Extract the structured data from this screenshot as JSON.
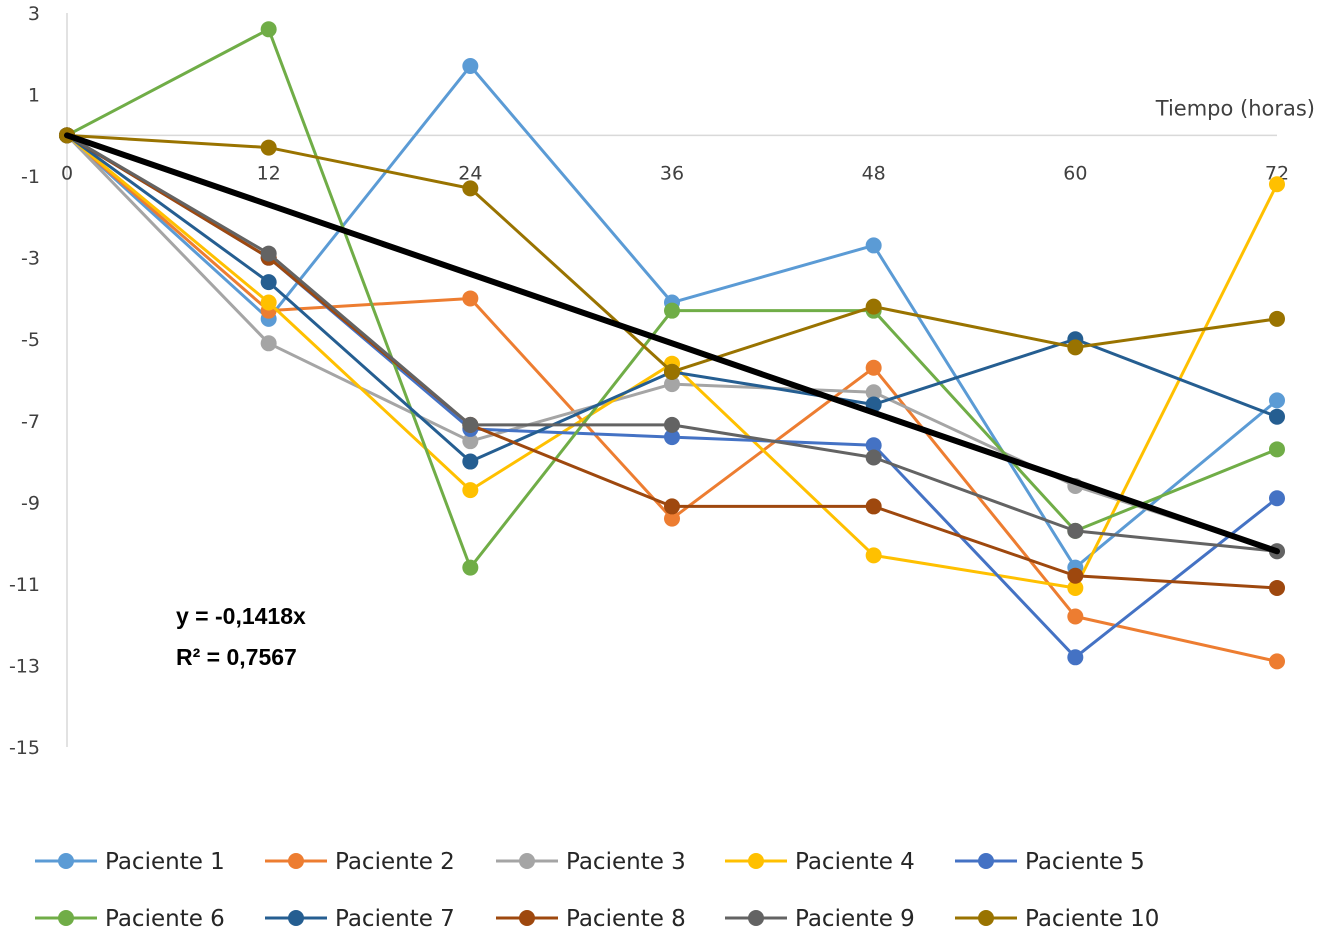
{
  "chart_data": {
    "type": "line",
    "xlabel": "Tiempo (horas)",
    "ylabel": "",
    "x": [
      0,
      12,
      24,
      36,
      48,
      60,
      72
    ],
    "x_tick_labels": [
      "0",
      "12",
      "24",
      "36",
      "48",
      "60",
      "72"
    ],
    "ylim": [
      -15,
      3
    ],
    "y_ticks": [
      3,
      1,
      -1,
      -3,
      -5,
      -7,
      -9,
      -11,
      -13,
      -15
    ],
    "y_tick_labels": [
      "3",
      "1",
      "-1",
      "-3",
      "-5",
      "-7",
      "-9",
      "-11",
      "-13",
      "-15"
    ],
    "grid": false,
    "legend_position": "bottom",
    "series": [
      {
        "name": "Paciente 1",
        "color": "#5B9BD5",
        "values": [
          0,
          -4.5,
          1.7,
          -4.1,
          -2.7,
          -10.6,
          -6.5
        ]
      },
      {
        "name": "Paciente 2",
        "color": "#ED7D31",
        "values": [
          0,
          -4.3,
          -4.0,
          -9.4,
          -5.7,
          -11.8,
          -12.9
        ]
      },
      {
        "name": "Paciente 3",
        "color": "#A5A5A5",
        "values": [
          0,
          -5.1,
          -7.5,
          -6.1,
          -6.3,
          -8.6,
          -10.2
        ]
      },
      {
        "name": "Paciente 4",
        "color": "#FFC000",
        "values": [
          0,
          -4.1,
          -8.7,
          -5.6,
          -10.3,
          -11.1,
          -1.2
        ]
      },
      {
        "name": "Paciente 5",
        "color": "#4472C4",
        "values": [
          0,
          -3.0,
          -7.2,
          -7.4,
          -7.6,
          -12.8,
          -8.9
        ]
      },
      {
        "name": "Paciente 6",
        "color": "#70AD47",
        "values": [
          0,
          2.6,
          -10.6,
          -4.3,
          -4.3,
          -9.7,
          -7.7
        ]
      },
      {
        "name": "Paciente 7",
        "color": "#255E91",
        "values": [
          0,
          -3.6,
          -8.0,
          -5.8,
          -6.6,
          -5.0,
          -6.9
        ]
      },
      {
        "name": "Paciente 8",
        "color": "#9E480E",
        "values": [
          0,
          -3.0,
          -7.1,
          -9.1,
          -9.1,
          -10.8,
          -11.1
        ]
      },
      {
        "name": "Paciente 9",
        "color": "#636363",
        "values": [
          0,
          -2.9,
          -7.1,
          -7.1,
          -7.9,
          -9.7,
          -10.2
        ]
      },
      {
        "name": "Paciente 10",
        "color": "#997300",
        "values": [
          0,
          -0.3,
          -1.3,
          -5.8,
          -4.2,
          -5.2,
          -4.5
        ]
      }
    ],
    "trendline": {
      "color": "#000000",
      "x": [
        0,
        72
      ],
      "values": [
        0,
        -10.2
      ],
      "equation": "y = -0,1418x",
      "r_squared": "R² = 0,7567"
    }
  }
}
